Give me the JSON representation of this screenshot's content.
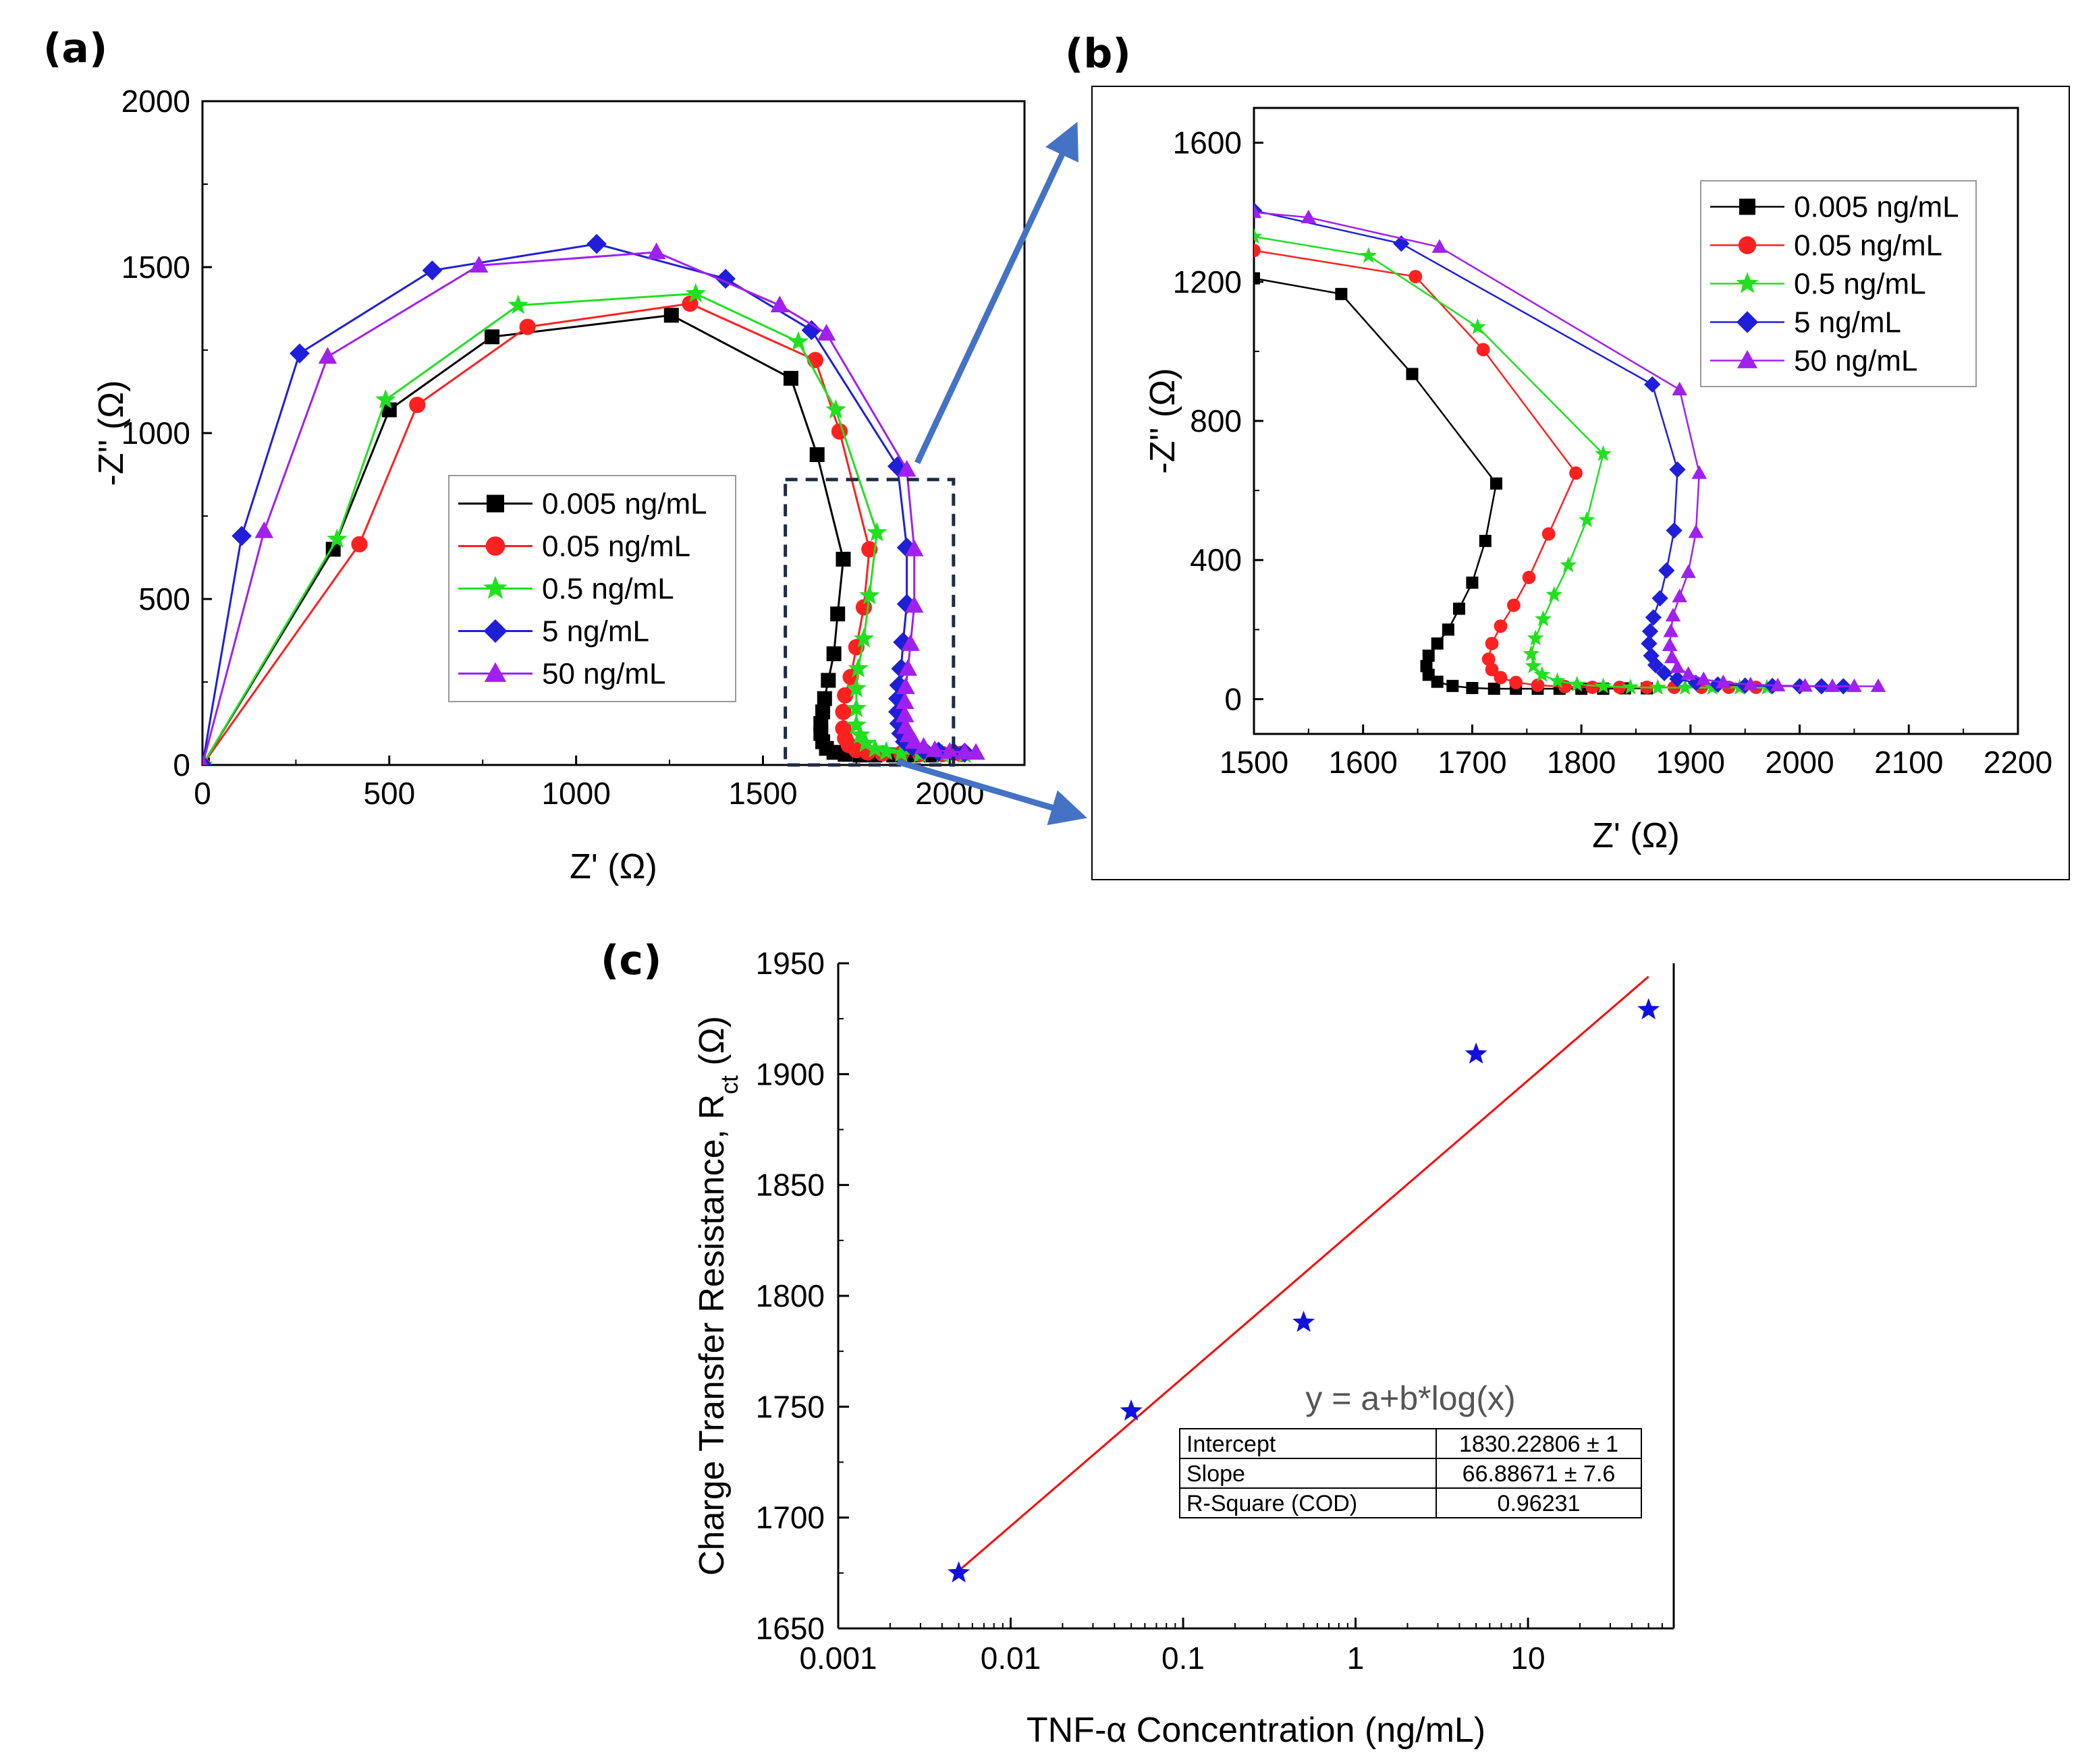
{
  "panels": {
    "a_label": "(a)",
    "b_label": "(b)",
    "c_label": "(c)"
  },
  "chart_data": [
    {
      "id": "a",
      "type": "line",
      "title": "",
      "xlabel": "Z' (Ω)",
      "ylabel": "-Z'' (Ω)",
      "xlim": [
        0,
        2200
      ],
      "ylim": [
        0,
        2000
      ],
      "xticks": [
        0,
        500,
        1000,
        1500,
        2000
      ],
      "yticks": [
        0,
        500,
        1000,
        1500,
        2000
      ],
      "legend_position": "center",
      "highlight_box": {
        "x": [
          1560,
          2010
        ],
        "y": [
          0,
          860
        ]
      },
      "series": [
        {
          "name": "0.005 ng/mL",
          "color": "#000000",
          "marker": "square",
          "points": [
            [
              0,
              0
            ],
            [
              350,
              650
            ],
            [
              500,
              1070
            ],
            [
              775,
              1290
            ],
            [
              1255,
              1355
            ],
            [
              1575,
              1165
            ],
            [
              1645,
              935
            ],
            [
              1715,
              620
            ],
            [
              1700,
              455
            ],
            [
              1690,
              335
            ],
            [
              1675,
              255
            ],
            [
              1665,
              200
            ],
            [
              1660,
              160
            ],
            [
              1655,
              125
            ],
            [
              1655,
              95
            ],
            [
              1660,
              70
            ],
            [
              1670,
              50
            ],
            [
              1690,
              38
            ],
            [
              1720,
              32
            ],
            [
              1760,
              30
            ],
            [
              1800,
              30
            ],
            [
              1850,
              30
            ],
            [
              1900,
              30
            ],
            [
              1950,
              30
            ]
          ]
        },
        {
          "name": "0.05 ng/mL",
          "color": "#ff2020",
          "marker": "circle",
          "points": [
            [
              0,
              0
            ],
            [
              420,
              665
            ],
            [
              575,
              1085
            ],
            [
              870,
              1320
            ],
            [
              1305,
              1390
            ],
            [
              1640,
              1220
            ],
            [
              1705,
              1005
            ],
            [
              1785,
              650
            ],
            [
              1770,
              475
            ],
            [
              1750,
              355
            ],
            [
              1735,
              265
            ],
            [
              1720,
              210
            ],
            [
              1715,
              160
            ],
            [
              1715,
              110
            ],
            [
              1720,
              80
            ],
            [
              1730,
              60
            ],
            [
              1750,
              45
            ],
            [
              1780,
              38
            ],
            [
              1820,
              35
            ],
            [
              1870,
              34
            ],
            [
              1920,
              33
            ],
            [
              1980,
              33
            ],
            [
              2030,
              33
            ]
          ]
        },
        {
          "name": "0.5 ng/mL",
          "color": "#20e020",
          "marker": "star",
          "points": [
            [
              0,
              0
            ],
            [
              360,
              680
            ],
            [
              490,
              1100
            ],
            [
              845,
              1385
            ],
            [
              1320,
              1420
            ],
            [
              1595,
              1275
            ],
            [
              1695,
              1070
            ],
            [
              1805,
              700
            ],
            [
              1785,
              510
            ],
            [
              1770,
              380
            ],
            [
              1755,
              290
            ],
            [
              1750,
              230
            ],
            [
              1750,
              170
            ],
            [
              1750,
              120
            ],
            [
              1760,
              90
            ],
            [
              1775,
              65
            ],
            [
              1800,
              48
            ],
            [
              1830,
              40
            ],
            [
              1870,
              35
            ],
            [
              1920,
              33
            ],
            [
              1980,
              32
            ],
            [
              2040,
              32
            ]
          ]
        },
        {
          "name": "5 ng/mL",
          "color": "#1f1fd9",
          "marker": "diamond",
          "points": [
            [
              0,
              0
            ],
            [
              105,
              690
            ],
            [
              260,
              1240
            ],
            [
              615,
              1490
            ],
            [
              1055,
              1570
            ],
            [
              1400,
              1465
            ],
            [
              1630,
              1310
            ],
            [
              1860,
              900
            ],
            [
              1885,
              655
            ],
            [
              1885,
              485
            ],
            [
              1875,
              370
            ],
            [
              1870,
              290
            ],
            [
              1865,
              240
            ],
            [
              1862,
              200
            ],
            [
              1862,
              160
            ],
            [
              1865,
              125
            ],
            [
              1870,
              95
            ],
            [
              1880,
              70
            ],
            [
              1900,
              55
            ],
            [
              1930,
              45
            ],
            [
              1970,
              40
            ],
            [
              2010,
              38
            ],
            [
              2040,
              37
            ]
          ]
        },
        {
          "name": "50 ng/mL",
          "color": "#a020f0",
          "marker": "triangle",
          "points": [
            [
              0,
              0
            ],
            [
              165,
              705
            ],
            [
              335,
              1230
            ],
            [
              740,
              1505
            ],
            [
              1215,
              1545
            ],
            [
              1545,
              1385
            ],
            [
              1670,
              1300
            ],
            [
              1885,
              890
            ],
            [
              1905,
              650
            ],
            [
              1905,
              480
            ],
            [
              1895,
              365
            ],
            [
              1888,
              290
            ],
            [
              1882,
              235
            ],
            [
              1880,
              190
            ],
            [
              1880,
              150
            ],
            [
              1882,
              115
            ],
            [
              1890,
              90
            ],
            [
              1905,
              70
            ],
            [
              1930,
              55
            ],
            [
              1960,
              45
            ],
            [
              2000,
              40
            ],
            [
              2040,
              38
            ],
            [
              2070,
              37
            ]
          ]
        }
      ]
    },
    {
      "id": "b",
      "type": "line",
      "title": "",
      "xlabel": "Z' (Ω)",
      "ylabel": "-Z'' (Ω)",
      "xlim": [
        1500,
        2200
      ],
      "ylim": [
        -100,
        1700
      ],
      "xticks": [
        1500,
        1600,
        1700,
        1800,
        1900,
        2000,
        2100,
        2200
      ],
      "yticks": [
        0,
        400,
        800,
        1200,
        1600
      ],
      "legend_position": "top-right",
      "series": [
        {
          "name": "0.005 ng/mL",
          "color": "#000000",
          "marker": "square",
          "points": [
            [
              1500,
              1210
            ],
            [
              1580,
              1165
            ],
            [
              1645,
              935
            ],
            [
              1722,
              620
            ],
            [
              1712,
              455
            ],
            [
              1700,
              335
            ],
            [
              1688,
              260
            ],
            [
              1678,
              200
            ],
            [
              1668,
              160
            ],
            [
              1660,
              125
            ],
            [
              1658,
              95
            ],
            [
              1660,
              70
            ],
            [
              1668,
              50
            ],
            [
              1682,
              38
            ],
            [
              1700,
              32
            ],
            [
              1720,
              30
            ],
            [
              1740,
              30
            ],
            [
              1760,
              30
            ],
            [
              1780,
              30
            ],
            [
              1800,
              30
            ],
            [
              1820,
              30
            ],
            [
              1840,
              31
            ],
            [
              1860,
              31
            ]
          ]
        },
        {
          "name": "0.05 ng/mL",
          "color": "#ff2020",
          "marker": "circle",
          "points": [
            [
              1500,
              1290
            ],
            [
              1648,
              1215
            ],
            [
              1710,
              1005
            ],
            [
              1795,
              650
            ],
            [
              1770,
              475
            ],
            [
              1752,
              350
            ],
            [
              1738,
              270
            ],
            [
              1726,
              210
            ],
            [
              1718,
              160
            ],
            [
              1715,
              115
            ],
            [
              1718,
              85
            ],
            [
              1726,
              62
            ],
            [
              1740,
              48
            ],
            [
              1760,
              40
            ],
            [
              1785,
              36
            ],
            [
              1810,
              34
            ],
            [
              1835,
              34
            ],
            [
              1860,
              34
            ],
            [
              1885,
              34
            ],
            [
              1910,
              34
            ],
            [
              1935,
              34
            ],
            [
              1960,
              34
            ]
          ]
        },
        {
          "name": "0.5 ng/mL",
          "color": "#20e020",
          "marker": "star",
          "points": [
            [
              1500,
              1330
            ],
            [
              1605,
              1275
            ],
            [
              1705,
              1070
            ],
            [
              1820,
              705
            ],
            [
              1805,
              515
            ],
            [
              1788,
              385
            ],
            [
              1775,
              300
            ],
            [
              1765,
              230
            ],
            [
              1758,
              175
            ],
            [
              1754,
              130
            ],
            [
              1756,
              95
            ],
            [
              1764,
              70
            ],
            [
              1778,
              52
            ],
            [
              1796,
              42
            ],
            [
              1820,
              37
            ],
            [
              1845,
              34
            ],
            [
              1870,
              33
            ],
            [
              1895,
              33
            ],
            [
              1920,
              33
            ],
            [
              1945,
              33
            ],
            [
              1970,
              33
            ]
          ]
        },
        {
          "name": "5 ng/mL",
          "color": "#1f1fd9",
          "marker": "diamond",
          "points": [
            [
              1500,
              1405
            ],
            [
              1635,
              1310
            ],
            [
              1865,
              905
            ],
            [
              1888,
              660
            ],
            [
              1885,
              485
            ],
            [
              1878,
              370
            ],
            [
              1872,
              290
            ],
            [
              1866,
              235
            ],
            [
              1863,
              195
            ],
            [
              1862,
              160
            ],
            [
              1864,
              125
            ],
            [
              1868,
              98
            ],
            [
              1876,
              75
            ],
            [
              1888,
              58
            ],
            [
              1905,
              47
            ],
            [
              1925,
              42
            ],
            [
              1950,
              39
            ],
            [
              1975,
              38
            ],
            [
              2000,
              37
            ],
            [
              2020,
              37
            ],
            [
              2040,
              37
            ]
          ]
        },
        {
          "name": "50 ng/mL",
          "color": "#a020f0",
          "marker": "triangle",
          "points": [
            [
              1500,
              1400
            ],
            [
              1550,
              1385
            ],
            [
              1670,
              1300
            ],
            [
              1890,
              890
            ],
            [
              1908,
              650
            ],
            [
              1905,
              480
            ],
            [
              1898,
              365
            ],
            [
              1890,
              295
            ],
            [
              1884,
              240
            ],
            [
              1882,
              195
            ],
            [
              1881,
              155
            ],
            [
              1883,
              120
            ],
            [
              1888,
              92
            ],
            [
              1898,
              72
            ],
            [
              1912,
              57
            ],
            [
              1930,
              48
            ],
            [
              1955,
              42
            ],
            [
              1980,
              39
            ],
            [
              2005,
              38
            ],
            [
              2030,
              37
            ],
            [
              2050,
              37
            ],
            [
              2072,
              37
            ]
          ]
        }
      ]
    },
    {
      "id": "c",
      "type": "scatter",
      "title": "",
      "xlabel": "TNF-α Concentration (ng/mL)",
      "ylabel_main": "Charge Transfer Resistance, R",
      "ylabel_sub": "ct",
      "ylabel_unit": " (Ω)",
      "xscale": "log",
      "xlim": [
        0.001,
        70
      ],
      "ylim": [
        1650,
        1950
      ],
      "xticks": [
        0.001,
        0.01,
        0.1,
        1,
        10
      ],
      "xtick_labels": [
        "0.001",
        "0.01",
        "0.1",
        "1",
        "10"
      ],
      "yticks": [
        1650,
        1700,
        1750,
        1800,
        1850,
        1900,
        1950
      ],
      "series": [
        {
          "name": "Rct",
          "color": "#1010e0",
          "marker": "star",
          "x": [
            0.005,
            0.05,
            0.5,
            5,
            50
          ],
          "y": [
            1675,
            1748,
            1788,
            1909,
            1929
          ]
        }
      ],
      "fit_line": {
        "color": "#ff0000",
        "x": [
          0.005,
          50
        ],
        "y": [
          1676,
          1944
        ]
      },
      "equation": "y = a+b*log(x)",
      "fit_table": [
        [
          "Intercept",
          "1830.22806 ± 1"
        ],
        [
          "Slope",
          "66.88671 ± 7.6"
        ],
        [
          "R-Square (COD)",
          "0.96231"
        ]
      ]
    }
  ],
  "colors": {
    "arrow": "#4472c4",
    "box": "#1f2a44"
  }
}
